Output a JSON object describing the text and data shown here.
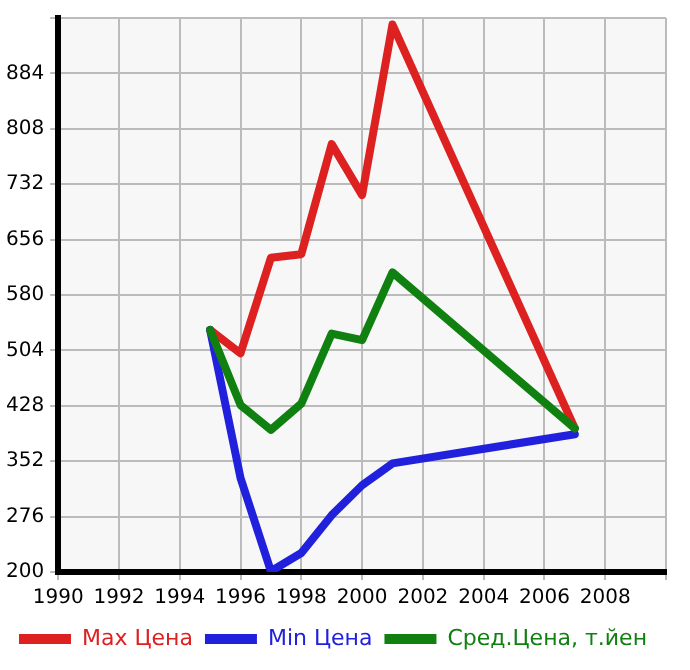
{
  "chart_data": {
    "type": "line",
    "x": [
      1995,
      1996,
      1997,
      1998,
      1999,
      2000,
      2001,
      2007
    ],
    "series": [
      {
        "name": "Max Цена",
        "color": "#dd2020",
        "values": [
          532,
          500,
          631,
          636,
          787,
          717,
          951,
          397
        ]
      },
      {
        "name": "Min Цена",
        "color": "#2020dd",
        "values": [
          532,
          329,
          201,
          226,
          278,
          319,
          349,
          389
        ]
      },
      {
        "name": "Сред.Цена, т.йен",
        "color": "#108010",
        "values": [
          532,
          429,
          395,
          431,
          527,
          518,
          611,
          397
        ]
      }
    ],
    "xlim": [
      1990,
      2010
    ],
    "xticks": [
      1990,
      1992,
      1994,
      1996,
      1998,
      2000,
      2002,
      2004,
      2006,
      2008,
      {
        "value": 2010,
        "label": null
      }
    ],
    "ylim": [
      200,
      960
    ],
    "yticks": [
      200,
      276,
      352,
      428,
      504,
      580,
      656,
      732,
      808,
      884,
      {
        "value": 960,
        "label": null
      }
    ],
    "grid": true,
    "legend": "bottom",
    "marker": "none",
    "line_style": "solid"
  }
}
